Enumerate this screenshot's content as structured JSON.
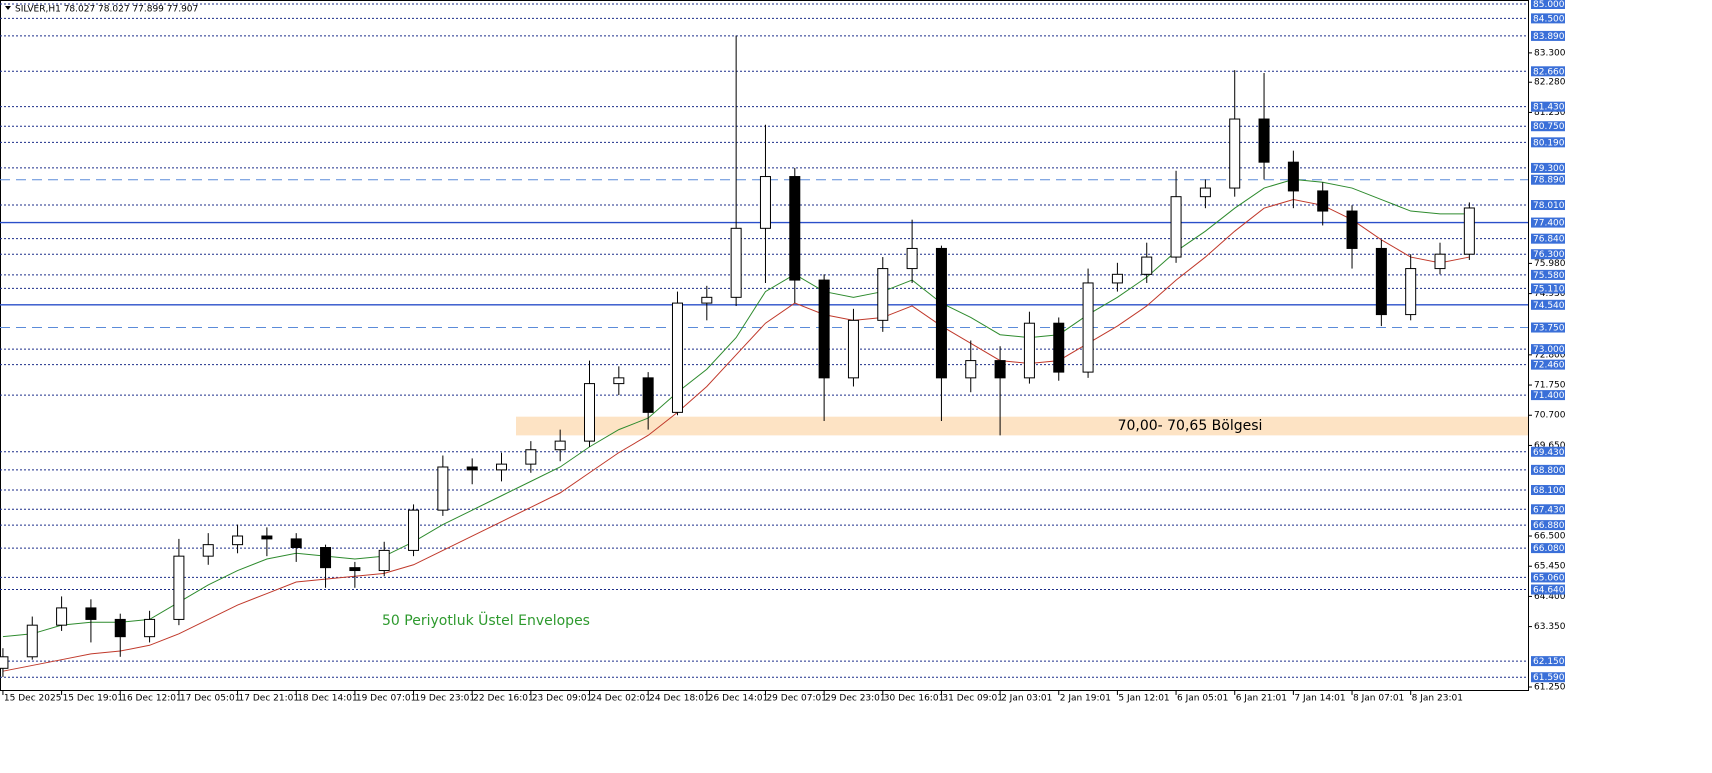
{
  "chart_data": {
    "type": "candlestick",
    "title": "SILVER,H1  78.027 78.027 77.899 77.907",
    "xlim": [
      -0.1,
      52
    ],
    "ylim": [
      61.25,
      85.0
    ],
    "xticks": [
      {
        "value": 0,
        "label": "15 Dec 2025"
      },
      {
        "value": 2,
        "label": "15 Dec 19:01"
      },
      {
        "value": 4,
        "label": "16 Dec 12:01"
      },
      {
        "value": 6,
        "label": "17 Dec 05:01"
      },
      {
        "value": 8,
        "label": "17 Dec 21:01"
      },
      {
        "value": 10,
        "label": "18 Dec 14:01"
      },
      {
        "value": 12,
        "label": "19 Dec 07:01"
      },
      {
        "value": 14,
        "label": "19 Dec 23:01"
      },
      {
        "value": 16,
        "label": "22 Dec 16:01"
      },
      {
        "value": 18,
        "label": "23 Dec 09:01"
      },
      {
        "value": 20,
        "label": "24 Dec 02:01"
      },
      {
        "value": 22,
        "label": "24 Dec 18:01"
      },
      {
        "value": 24,
        "label": "26 Dec 14:01"
      },
      {
        "value": 26,
        "label": "29 Dec 07:01"
      },
      {
        "value": 28,
        "label": "29 Dec 23:01"
      },
      {
        "value": 30,
        "label": "30 Dec 16:01"
      },
      {
        "value": 32,
        "label": "31 Dec 09:01"
      },
      {
        "value": 34,
        "label": "2 Jan 03:01"
      },
      {
        "value": 36,
        "label": "2 Jan 19:01"
      },
      {
        "value": 38,
        "label": "5 Jan 12:01"
      },
      {
        "value": 40,
        "label": "6 Jan 05:01"
      },
      {
        "value": 42,
        "label": "6 Jan 21:01"
      },
      {
        "value": 44,
        "label": "7 Jan 14:01"
      },
      {
        "value": 46,
        "label": "8 Jan 07:01"
      },
      {
        "value": 48,
        "label": "8 Jan 23:01"
      }
    ],
    "yticks": [
      {
        "value": 83.3,
        "label": "83.300"
      },
      {
        "value": 82.28,
        "label": "82.280"
      },
      {
        "value": 81.23,
        "label": "81.230"
      },
      {
        "value": 75.98,
        "label": "75.980"
      },
      {
        "value": 74.93,
        "label": "74.930"
      },
      {
        "value": 72.8,
        "label": "72.800"
      },
      {
        "value": 71.75,
        "label": "71.750"
      },
      {
        "value": 70.7,
        "label": "70.700"
      },
      {
        "value": 69.65,
        "label": "69.650"
      },
      {
        "value": 66.5,
        "label": "66.500"
      },
      {
        "value": 65.45,
        "label": "65.450"
      },
      {
        "value": 64.4,
        "label": "64.400"
      },
      {
        "value": 63.35,
        "label": "63.350"
      },
      {
        "value": 61.25,
        "label": "61.250"
      }
    ],
    "levels": [
      {
        "value": 85.0,
        "label": "85.000",
        "style": "dotted"
      },
      {
        "value": 84.5,
        "label": "84.500",
        "style": "dotted"
      },
      {
        "value": 83.89,
        "label": "83.890",
        "style": "dotted"
      },
      {
        "value": 82.66,
        "label": "82.660",
        "style": "dotted"
      },
      {
        "value": 81.43,
        "label": "81.430",
        "style": "dotted"
      },
      {
        "value": 80.75,
        "label": "80.750",
        "style": "dotted"
      },
      {
        "value": 80.19,
        "label": "80.190",
        "style": "dotted"
      },
      {
        "value": 79.3,
        "label": "79.300",
        "style": "dotted"
      },
      {
        "value": 78.89,
        "label": "78.890",
        "style": "dashed"
      },
      {
        "value": 78.01,
        "label": "78.010",
        "style": "dotted"
      },
      {
        "value": 77.4,
        "label": "77.400",
        "style": "solid"
      },
      {
        "value": 76.84,
        "label": "76.840",
        "style": "dotted"
      },
      {
        "value": 76.3,
        "label": "76.300",
        "style": "dotted"
      },
      {
        "value": 75.58,
        "label": "75.580",
        "style": "dotted"
      },
      {
        "value": 75.11,
        "label": "75.110",
        "style": "dotted"
      },
      {
        "value": 74.54,
        "label": "74.540",
        "style": "solid"
      },
      {
        "value": 73.75,
        "label": "73.750",
        "style": "dashed"
      },
      {
        "value": 73.0,
        "label": "73.000",
        "style": "dotted"
      },
      {
        "value": 72.46,
        "label": "72.460",
        "style": "dotted"
      },
      {
        "value": 71.4,
        "label": "71.400",
        "style": "dotted"
      },
      {
        "value": 69.43,
        "label": "69.430",
        "style": "dotted"
      },
      {
        "value": 68.8,
        "label": "68.800",
        "style": "dotted"
      },
      {
        "value": 68.1,
        "label": "68.100",
        "style": "dotted"
      },
      {
        "value": 67.43,
        "label": "67.430",
        "style": "dotted"
      },
      {
        "value": 66.88,
        "label": "66.880",
        "style": "dotted"
      },
      {
        "value": 66.08,
        "label": "66.080",
        "style": "dotted"
      },
      {
        "value": 65.06,
        "label": "65.060",
        "style": "dotted"
      },
      {
        "value": 64.64,
        "label": "64.640",
        "style": "dotted"
      },
      {
        "value": 62.15,
        "label": "62.150",
        "style": "dotted"
      },
      {
        "value": 61.59,
        "label": "61.590",
        "style": "dotted"
      }
    ],
    "open": [
      61.9,
      62.3,
      63.4,
      64.0,
      63.6,
      63.0,
      63.6,
      65.8,
      66.2,
      66.5,
      66.4,
      66.1,
      65.4,
      65.3,
      66.0,
      67.4,
      68.9,
      68.8,
      69.0,
      69.5,
      69.8,
      71.8,
      72.0,
      70.8,
      74.6,
      74.8,
      77.2,
      79.0,
      75.4,
      72.0,
      74.0,
      75.8,
      76.5,
      72.0,
      72.6,
      72.0,
      73.9,
      72.2,
      75.3,
      75.6,
      76.2,
      78.3,
      78.6,
      81.0,
      79.5,
      78.5,
      77.8,
      76.5,
      74.2,
      75.8,
      76.3
    ],
    "high": [
      62.6,
      63.7,
      64.4,
      64.3,
      63.8,
      63.9,
      66.4,
      66.6,
      66.9,
      66.8,
      66.6,
      66.2,
      65.6,
      66.3,
      67.6,
      69.3,
      69.2,
      69.4,
      69.8,
      70.2,
      72.6,
      72.4,
      72.2,
      75.0,
      75.2,
      83.9,
      80.8,
      79.3,
      75.6,
      74.4,
      76.2,
      77.5,
      76.6,
      73.3,
      73.1,
      74.3,
      74.1,
      75.8,
      76.0,
      76.7,
      79.2,
      78.9,
      82.7,
      82.6,
      79.9,
      78.8,
      78.0,
      76.8,
      76.3,
      76.7,
      78.1
    ],
    "low": [
      61.6,
      62.2,
      63.2,
      62.8,
      62.3,
      62.8,
      63.4,
      65.5,
      65.9,
      65.8,
      65.6,
      64.7,
      64.7,
      65.1,
      65.8,
      67.2,
      68.3,
      68.4,
      68.7,
      69.1,
      69.6,
      71.4,
      70.2,
      70.7,
      74.0,
      74.5,
      75.3,
      74.6,
      70.5,
      71.7,
      73.6,
      75.3,
      70.5,
      71.5,
      70.0,
      71.8,
      71.9,
      72.0,
      75.0,
      75.3,
      76.0,
      77.9,
      78.3,
      78.9,
      77.9,
      77.3,
      75.8,
      73.8,
      74.0,
      75.6,
      76.1
    ],
    "close": [
      62.3,
      63.4,
      64.0,
      63.6,
      63.0,
      63.6,
      65.8,
      66.2,
      66.5,
      66.4,
      66.1,
      65.4,
      65.3,
      66.0,
      67.4,
      68.9,
      68.8,
      69.0,
      69.5,
      69.8,
      71.8,
      72.0,
      70.8,
      74.6,
      74.8,
      77.2,
      79.0,
      75.4,
      72.0,
      74.0,
      75.8,
      76.5,
      72.0,
      72.6,
      72.0,
      73.9,
      72.2,
      75.3,
      75.6,
      76.2,
      78.3,
      78.6,
      81.0,
      79.5,
      78.5,
      77.8,
      76.5,
      74.2,
      75.8,
      76.3,
      77.907
    ],
    "envelopes": [
      {
        "color": "#2e8b2e",
        "values": [
          63.0,
          63.1,
          63.4,
          63.5,
          63.5,
          63.6,
          64.2,
          64.8,
          65.3,
          65.7,
          65.9,
          65.8,
          65.7,
          65.8,
          66.3,
          66.9,
          67.4,
          67.9,
          68.4,
          68.9,
          69.6,
          70.2,
          70.6,
          71.5,
          72.3,
          73.4,
          75.0,
          75.6,
          75.0,
          74.8,
          75.0,
          75.4,
          74.6,
          74.1,
          73.5,
          73.4,
          73.5,
          74.2,
          74.8,
          75.5,
          76.4,
          77.1,
          77.9,
          78.6,
          78.9,
          78.8,
          78.6,
          78.2,
          77.8,
          77.7,
          77.7
        ]
      },
      {
        "color": "#c0392b",
        "values": [
          61.8,
          62.0,
          62.2,
          62.4,
          62.5,
          62.7,
          63.1,
          63.6,
          64.1,
          64.5,
          64.9,
          65.0,
          65.1,
          65.2,
          65.5,
          66.0,
          66.5,
          67.0,
          67.5,
          68.0,
          68.7,
          69.4,
          70.0,
          70.8,
          71.7,
          72.8,
          73.9,
          74.6,
          74.2,
          74.0,
          74.1,
          74.5,
          73.8,
          73.2,
          72.6,
          72.5,
          72.6,
          73.2,
          73.8,
          74.5,
          75.4,
          76.2,
          77.1,
          77.9,
          78.2,
          78.0,
          77.5,
          76.8,
          76.2,
          76.0,
          76.2
        ]
      }
    ],
    "zone": {
      "from": 70.0,
      "to": 70.65,
      "label": "70,00- 70,65 Bölgesi",
      "color": "#fde3c4"
    },
    "annotation": {
      "text": "50 Periyotluk Üstel Envelopes",
      "color": "#2e9a2e"
    },
    "bull_color": "#ffffff",
    "bear_color": "#000000",
    "level_color": "#1c2e8a",
    "level_label_color": "#3a6fd8"
  }
}
